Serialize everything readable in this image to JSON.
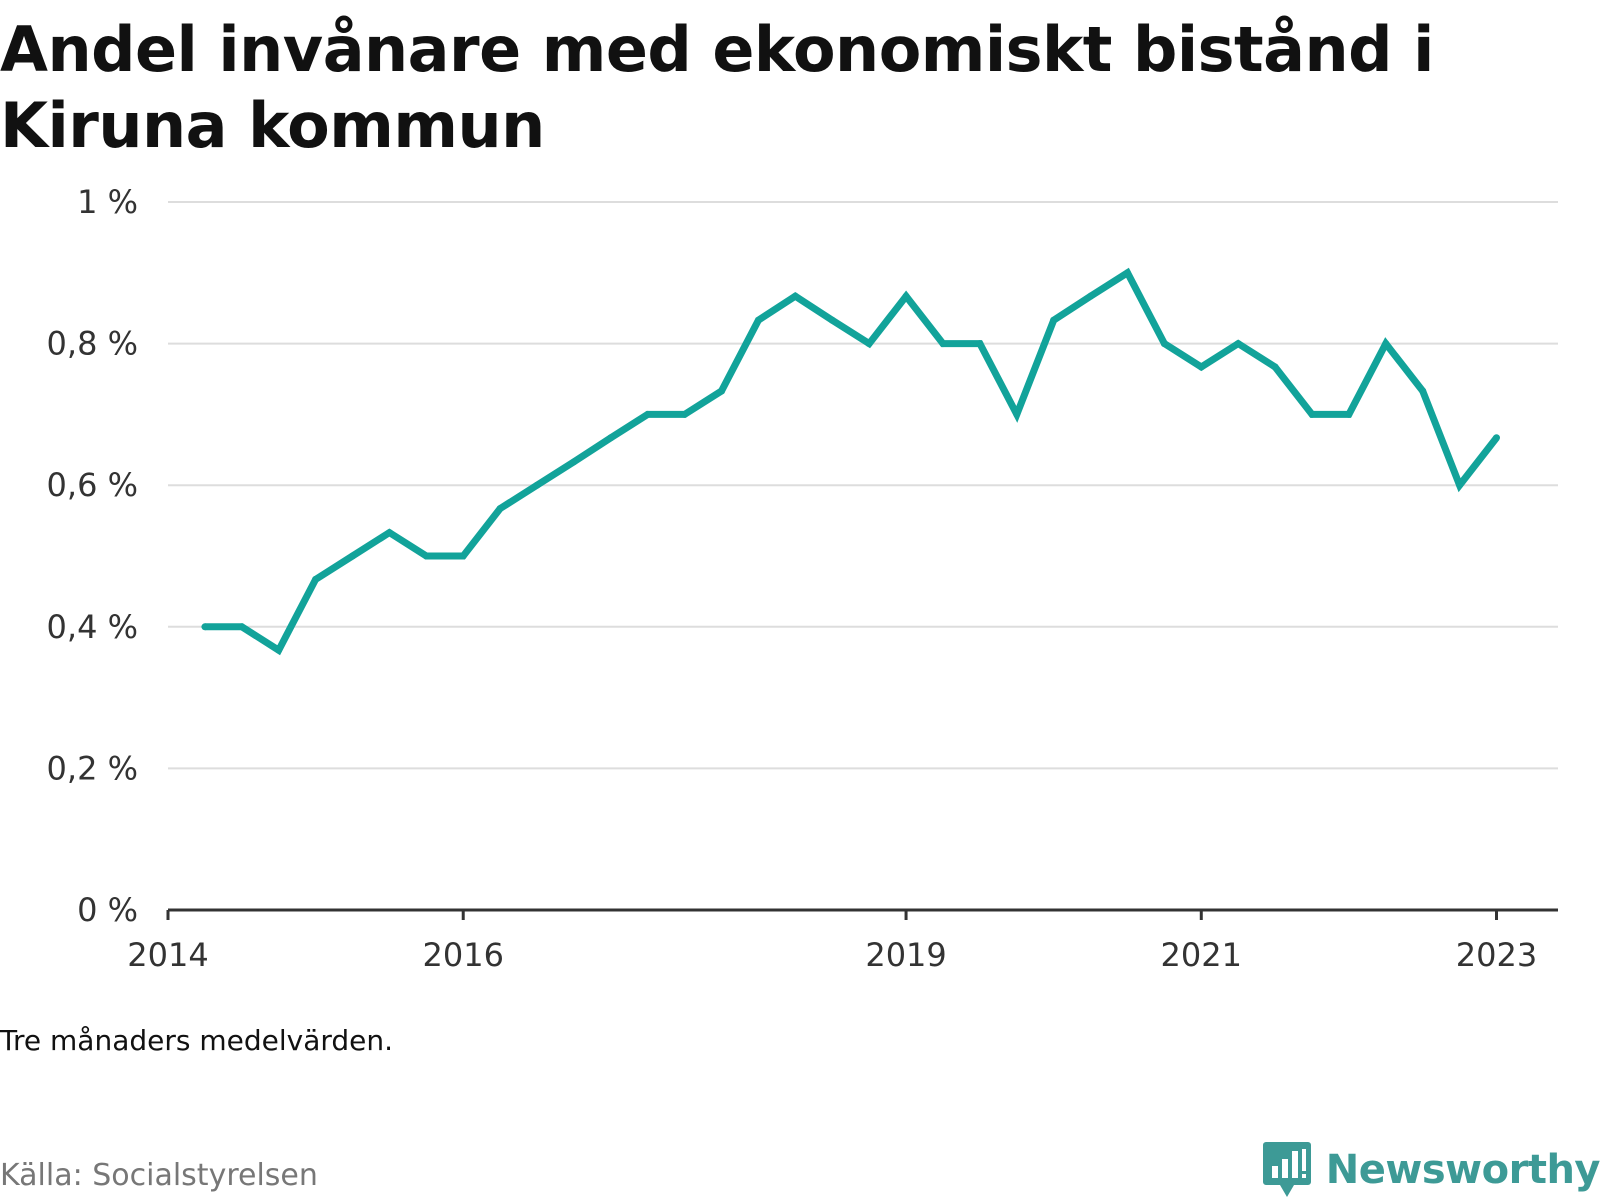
{
  "title": "Andel invånare med ekonomiskt bistånd i Kiruna kommun",
  "note": "Tre månaders medelvärden.",
  "source": "Källa: Socialstyrelsen",
  "brand": {
    "name": "Newsworthy",
    "icon": "newsworthy-logo-icon",
    "color": "#3d9a96"
  },
  "chart_data": {
    "type": "line",
    "line_color": "#12a39a",
    "grid": true,
    "ylim": [
      0,
      1
    ],
    "yticks": [
      {
        "value": 0,
        "label": "0 %"
      },
      {
        "value": 0.2,
        "label": "0,2 %"
      },
      {
        "value": 0.4,
        "label": "0,4 %"
      },
      {
        "value": 0.6,
        "label": "0,6 %"
      },
      {
        "value": 0.8,
        "label": "0,8 %"
      },
      {
        "value": 1,
        "label": "1 %"
      }
    ],
    "xlim": [
      "2014-01",
      "2023-06"
    ],
    "xticks": [
      {
        "value": "2014-01",
        "label": "2014"
      },
      {
        "value": "2016-01",
        "label": "2016"
      },
      {
        "value": "2019-01",
        "label": "2019"
      },
      {
        "value": "2021-01",
        "label": "2021"
      },
      {
        "value": "2023-01",
        "label": "2023"
      }
    ],
    "series": [
      {
        "values": [
          [
            "2014-04",
            0.4
          ],
          [
            "2014-07",
            0.4
          ],
          [
            "2014-10",
            0.367
          ],
          [
            "2015-01",
            0.467
          ],
          [
            "2015-04",
            0.5
          ],
          [
            "2015-07",
            0.533
          ],
          [
            "2015-10",
            0.5
          ],
          [
            "2016-01",
            0.5
          ],
          [
            "2016-04",
            0.567
          ],
          [
            "2016-07",
            0.6
          ],
          [
            "2016-10",
            0.633
          ],
          [
            "2017-01",
            0.667
          ],
          [
            "2017-04",
            0.7
          ],
          [
            "2017-07",
            0.7
          ],
          [
            "2017-10",
            0.733
          ],
          [
            "2018-01",
            0.833
          ],
          [
            "2018-04",
            0.867
          ],
          [
            "2018-07",
            0.833
          ],
          [
            "2018-10",
            0.8
          ],
          [
            "2019-01",
            0.867
          ],
          [
            "2019-04",
            0.8
          ],
          [
            "2019-07",
            0.8
          ],
          [
            "2019-10",
            0.7
          ],
          [
            "2020-01",
            0.833
          ],
          [
            "2020-04",
            0.867
          ],
          [
            "2020-07",
            0.9
          ],
          [
            "2020-10",
            0.8
          ],
          [
            "2021-01",
            0.767
          ],
          [
            "2021-04",
            0.8
          ],
          [
            "2021-07",
            0.767
          ],
          [
            "2021-10",
            0.7
          ],
          [
            "2022-01",
            0.7
          ],
          [
            "2022-04",
            0.8
          ],
          [
            "2022-07",
            0.733
          ],
          [
            "2022-10",
            0.6
          ],
          [
            "2023-01",
            0.667
          ]
        ]
      }
    ]
  }
}
